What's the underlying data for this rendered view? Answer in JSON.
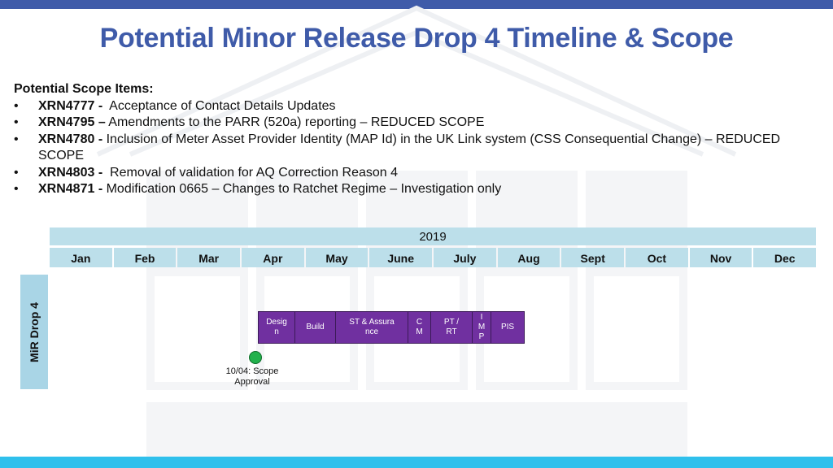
{
  "slide": {
    "title": "Potential Minor Release Drop 4 Timeline & Scope"
  },
  "scope": {
    "heading": "Potential Scope Items:",
    "items": [
      {
        "code": "XRN4777 -",
        "text": "  Acceptance of Contact Details Updates"
      },
      {
        "code": "XRN4795 –",
        "text": " Amendments to the PARR (520a) reporting – REDUCED SCOPE"
      },
      {
        "code": "XRN4780 -",
        "text": " Inclusion of Meter Asset Provider Identity (MAP Id) in the UK Link system (CSS Consequential Change) – REDUCED SCOPE"
      },
      {
        "code": "XRN4803 -",
        "text": "  Removal of validation for AQ Correction Reason 4"
      },
      {
        "code": "XRN4871 -",
        "text": " Modification 0665 – Changes to Ratchet Regime – Investigation only"
      }
    ]
  },
  "timeline": {
    "year": "2019",
    "months": [
      "Jan",
      "Feb",
      "Mar",
      "Apr",
      "May",
      "June",
      "July",
      "Aug",
      "Sept",
      "Oct",
      "Nov",
      "Dec"
    ],
    "row_label": "MiR Drop 4",
    "phases": [
      "Design",
      "Build",
      "ST & Assurance",
      "CM",
      "PT / RT",
      "IMP",
      "PIS"
    ],
    "milestone": {
      "label_line1": "10/04: Scope",
      "label_line2": "Approval",
      "color": "#22b14c"
    }
  },
  "colors": {
    "title": "#3f5ba9",
    "header_fill": "#bcdfea",
    "phase_fill": "#7030a0",
    "top_bar": "#3f5ba9",
    "bottom_bar": "#2fc0ec"
  }
}
